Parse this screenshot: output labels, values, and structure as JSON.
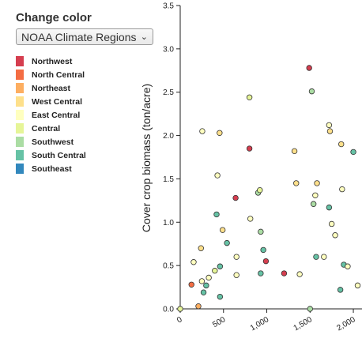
{
  "control": {
    "title": "Change color",
    "selected": "NOAA Climate Regions",
    "chevron_icon": "chevron-down-icon"
  },
  "legend": [
    {
      "label": "Northwest",
      "color": "#d53e4f"
    },
    {
      "label": "North Central",
      "color": "#f46d43"
    },
    {
      "label": "Northeast",
      "color": "#fdae61"
    },
    {
      "label": "West Central",
      "color": "#fee08b"
    },
    {
      "label": "East Central",
      "color": "#ffffbf"
    },
    {
      "label": "Central",
      "color": "#e6f598"
    },
    {
      "label": "Southwest",
      "color": "#abdda4"
    },
    {
      "label": "South Central",
      "color": "#66c2a5"
    },
    {
      "label": "Southeast",
      "color": "#3288bd"
    }
  ],
  "chart_data": {
    "type": "scatter",
    "xlabel": "",
    "ylabel": "Cover crop biomass (ton/acre)",
    "xlim": [
      0,
      2100
    ],
    "ylim": [
      0,
      3.5
    ],
    "x_ticks": [
      {
        "v": 0,
        "label": "0"
      },
      {
        "v": 500,
        "label": "500"
      },
      {
        "v": 1000,
        "label": "1,000"
      },
      {
        "v": 1500,
        "label": "1,500"
      },
      {
        "v": 2000,
        "label": "2,000"
      }
    ],
    "y_ticks": [
      {
        "v": 0,
        "label": "0.0"
      },
      {
        "v": 0.5,
        "label": "0.5"
      },
      {
        "v": 1,
        "label": "1.0"
      },
      {
        "v": 1.5,
        "label": "1.5"
      },
      {
        "v": 2,
        "label": "2.0"
      },
      {
        "v": 2.5,
        "label": "2.5"
      },
      {
        "v": 3,
        "label": "3.0"
      },
      {
        "v": 3.5,
        "label": "3.5"
      }
    ],
    "points": [
      {
        "x": 0,
        "y": 0.0,
        "c": "#e6f598"
      },
      {
        "x": 130,
        "y": 0.28,
        "c": "#f46d43"
      },
      {
        "x": 155,
        "y": 0.54,
        "c": "#ffffbf"
      },
      {
        "x": 210,
        "y": 0.03,
        "c": "#fdae61"
      },
      {
        "x": 240,
        "y": 0.7,
        "c": "#fee08b"
      },
      {
        "x": 250,
        "y": 0.32,
        "c": "#ffffbf"
      },
      {
        "x": 270,
        "y": 0.19,
        "c": "#66c2a5"
      },
      {
        "x": 300,
        "y": 0.27,
        "c": "#66c2a5"
      },
      {
        "x": 330,
        "y": 0.36,
        "c": "#ffffbf"
      },
      {
        "x": 255,
        "y": 2.05,
        "c": "#ffffbf"
      },
      {
        "x": 400,
        "y": 0.44,
        "c": "#e6f598"
      },
      {
        "x": 420,
        "y": 1.09,
        "c": "#66c2a5"
      },
      {
        "x": 430,
        "y": 1.54,
        "c": "#ffffbf"
      },
      {
        "x": 455,
        "y": 2.03,
        "c": "#fee08b"
      },
      {
        "x": 460,
        "y": 0.49,
        "c": "#66c2a5"
      },
      {
        "x": 460,
        "y": 0.14,
        "c": "#66c2a5"
      },
      {
        "x": 490,
        "y": 0.91,
        "c": "#fee08b"
      },
      {
        "x": 540,
        "y": 0.76,
        "c": "#66c2a5"
      },
      {
        "x": 640,
        "y": 1.28,
        "c": "#d53e4f"
      },
      {
        "x": 650,
        "y": 0.6,
        "c": "#ffffbf"
      },
      {
        "x": 650,
        "y": 0.39,
        "c": "#ffffbf"
      },
      {
        "x": 800,
        "y": 1.85,
        "c": "#d53e4f"
      },
      {
        "x": 800,
        "y": 2.44,
        "c": "#e6f598"
      },
      {
        "x": 810,
        "y": 1.04,
        "c": "#ffffbf"
      },
      {
        "x": 900,
        "y": 1.34,
        "c": "#abdda4"
      },
      {
        "x": 920,
        "y": 1.37,
        "c": "#e6f598"
      },
      {
        "x": 930,
        "y": 0.89,
        "c": "#abdda4"
      },
      {
        "x": 960,
        "y": 0.68,
        "c": "#66c2a5"
      },
      {
        "x": 990,
        "y": 0.55,
        "c": "#d53e4f"
      },
      {
        "x": 930,
        "y": 0.41,
        "c": "#66c2a5"
      },
      {
        "x": 1200,
        "y": 0.41,
        "c": "#d53e4f"
      },
      {
        "x": 1320,
        "y": 1.82,
        "c": "#fee08b"
      },
      {
        "x": 1340,
        "y": 1.45,
        "c": "#fee08b"
      },
      {
        "x": 1380,
        "y": 0.4,
        "c": "#ffffbf"
      },
      {
        "x": 1490,
        "y": 2.78,
        "c": "#d53e4f"
      },
      {
        "x": 1520,
        "y": 2.51,
        "c": "#abdda4"
      },
      {
        "x": 1540,
        "y": 1.21,
        "c": "#abdda4"
      },
      {
        "x": 1560,
        "y": 1.31,
        "c": "#ffffbf"
      },
      {
        "x": 1580,
        "y": 1.45,
        "c": "#fee08b"
      },
      {
        "x": 1570,
        "y": 0.6,
        "c": "#66c2a5"
      },
      {
        "x": 1500,
        "y": 0.0,
        "c": "#abdda4"
      },
      {
        "x": 1660,
        "y": 0.6,
        "c": "#ffffbf"
      },
      {
        "x": 1720,
        "y": 2.12,
        "c": "#ffffbf"
      },
      {
        "x": 1730,
        "y": 2.05,
        "c": "#fee08b"
      },
      {
        "x": 1720,
        "y": 1.17,
        "c": "#66c2a5"
      },
      {
        "x": 1750,
        "y": 0.98,
        "c": "#ffffbf"
      },
      {
        "x": 1790,
        "y": 0.85,
        "c": "#ffffbf"
      },
      {
        "x": 1860,
        "y": 1.9,
        "c": "#fee08b"
      },
      {
        "x": 1870,
        "y": 1.38,
        "c": "#ffffbf"
      },
      {
        "x": 1890,
        "y": 0.51,
        "c": "#66c2a5"
      },
      {
        "x": 1935,
        "y": 0.49,
        "c": "#ffffbf"
      },
      {
        "x": 1850,
        "y": 0.22,
        "c": "#66c2a5"
      },
      {
        "x": 2000,
        "y": 1.81,
        "c": "#66c2a5"
      },
      {
        "x": 2050,
        "y": 0.27,
        "c": "#ffffbf"
      }
    ]
  }
}
